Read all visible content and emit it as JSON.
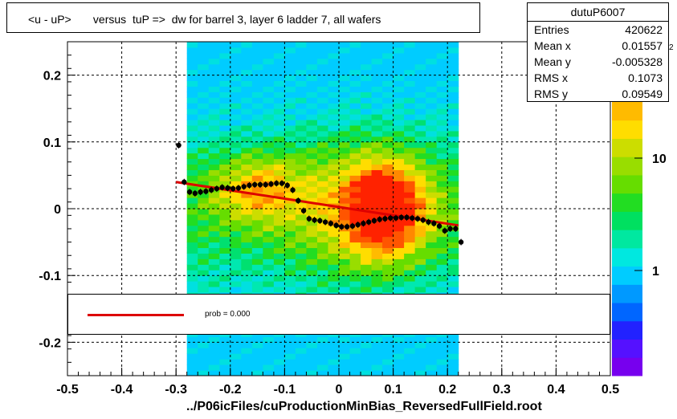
{
  "title": "<u - uP>       versus  tuP =>  dw for barrel 3, layer 6 ladder 7, all wafers",
  "stats": {
    "name": "dutuP6007",
    "rows": [
      {
        "label": "Entries",
        "value": "420622"
      },
      {
        "label": "Mean x",
        "value": "0.01557"
      },
      {
        "label": "Mean y",
        "value": "-0.005328"
      },
      {
        "label": "RMS x",
        "value": "0.1073"
      },
      {
        "label": "RMS y",
        "value": "0.09549"
      }
    ]
  },
  "legend": {
    "text": "prob = 0.000",
    "color": "#dd0000"
  },
  "footer": "../P06icFiles/cuProductionMinBias_ReversedFullField.root",
  "colorbar": {
    "labels": [
      "10",
      "1"
    ],
    "partial_label": "2"
  },
  "chart_data": {
    "type": "heatmap",
    "xlim": [
      -0.5,
      0.5
    ],
    "ylim": [
      -0.25,
      0.25
    ],
    "x_ticks": [
      "-0.5",
      "-0.4",
      "-0.3",
      "-0.2",
      "-0.1",
      "0",
      "0.1",
      "0.2",
      "0.3",
      "0.4",
      "0.5"
    ],
    "y_ticks": [
      "0.2",
      "0.1",
      "0",
      "-0.1",
      "-0.2"
    ],
    "grid": true,
    "z_scale": "log",
    "profile_points": {
      "x": [
        -0.295,
        -0.285,
        -0.275,
        -0.265,
        -0.255,
        -0.245,
        -0.235,
        -0.225,
        -0.215,
        -0.205,
        -0.195,
        -0.185,
        -0.175,
        -0.165,
        -0.155,
        -0.145,
        -0.135,
        -0.125,
        -0.115,
        -0.105,
        -0.095,
        -0.085,
        -0.075,
        -0.065,
        -0.055,
        -0.045,
        -0.035,
        -0.025,
        -0.015,
        -0.005,
        0.005,
        0.015,
        0.025,
        0.035,
        0.045,
        0.055,
        0.065,
        0.075,
        0.085,
        0.095,
        0.105,
        0.115,
        0.125,
        0.135,
        0.145,
        0.155,
        0.165,
        0.175,
        0.185,
        0.195,
        0.205,
        0.215,
        0.225
      ],
      "y": [
        0.095,
        0.04,
        0.025,
        0.023,
        0.025,
        0.026,
        0.028,
        0.03,
        0.032,
        0.031,
        0.03,
        0.031,
        0.033,
        0.035,
        0.036,
        0.036,
        0.036,
        0.037,
        0.038,
        0.038,
        0.035,
        0.028,
        0.012,
        -0.003,
        -0.015,
        -0.017,
        -0.018,
        -0.02,
        -0.022,
        -0.025,
        -0.027,
        -0.027,
        -0.026,
        -0.024,
        -0.022,
        -0.02,
        -0.018,
        -0.016,
        -0.015,
        -0.014,
        -0.014,
        -0.013,
        -0.013,
        -0.014,
        -0.015,
        -0.017,
        -0.02,
        -0.022,
        -0.026,
        -0.033,
        -0.03,
        -0.03,
        -0.05
      ]
    },
    "fit_line": {
      "x": [
        -0.3,
        0.22
      ],
      "y": [
        0.04,
        -0.025
      ],
      "color": "#dd0000"
    }
  }
}
